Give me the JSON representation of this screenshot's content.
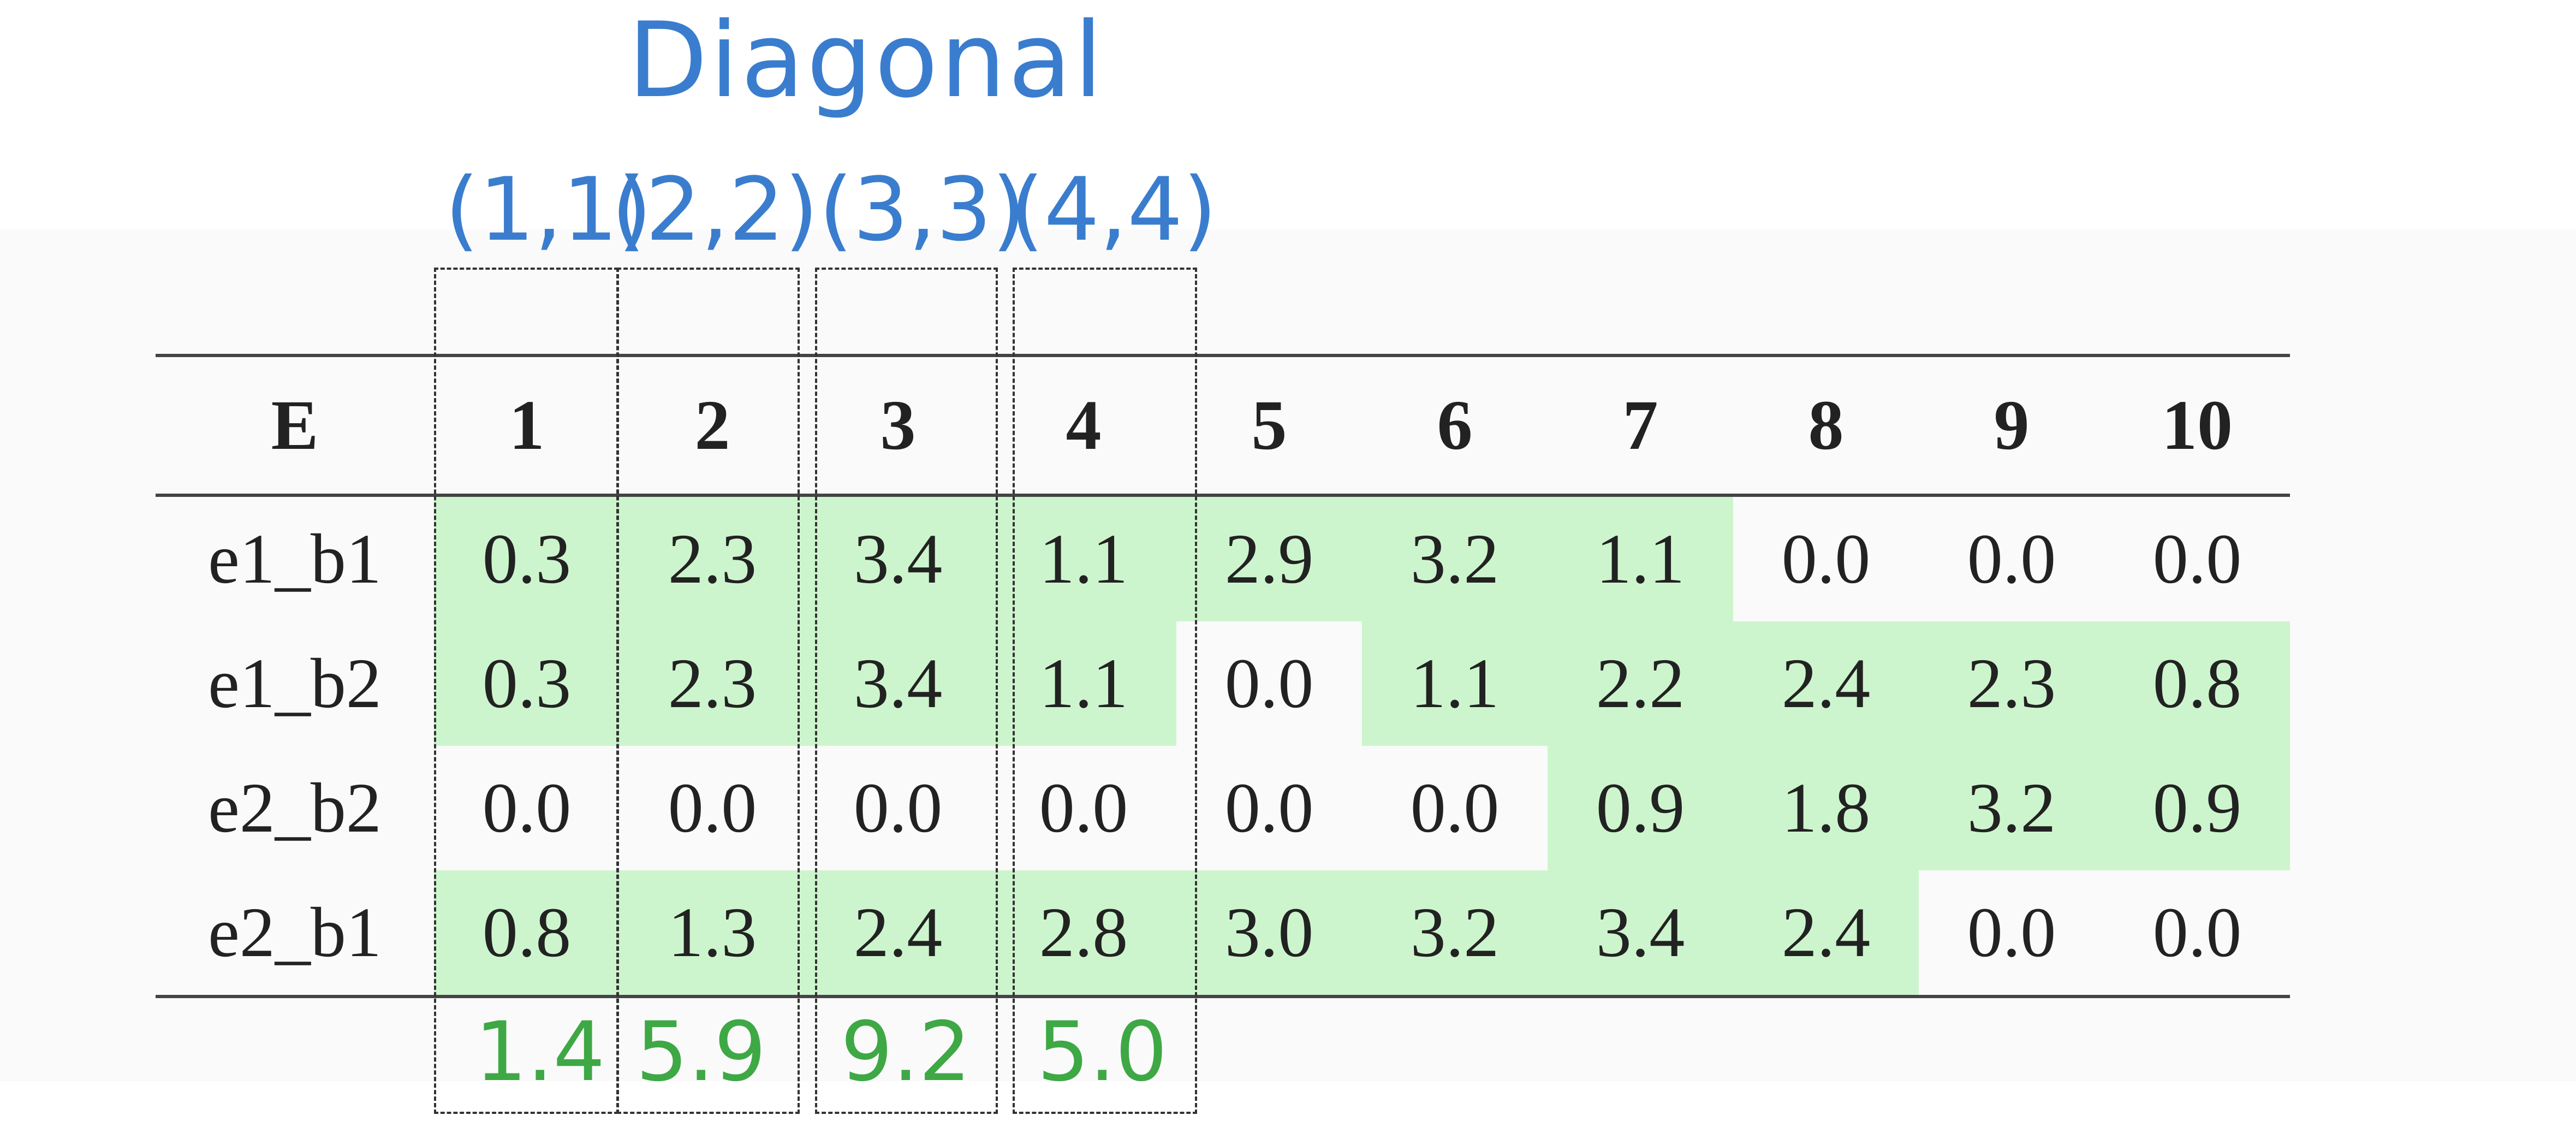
{
  "annotation": {
    "title": "Diagonal",
    "coordinates": [
      "(1,1)",
      "(2,2)",
      "(3,3)",
      "(4,4)"
    ],
    "diagonal_sums": [
      "1.4",
      "5.9",
      "9.2",
      "5.0"
    ],
    "colors": {
      "annotation_blue": "#3a7dce",
      "sum_green": "#3ea845",
      "highlight": "#cdf5cd"
    }
  },
  "table": {
    "header": [
      "E",
      "1",
      "2",
      "3",
      "4",
      "5",
      "6",
      "7",
      "8",
      "9",
      "10"
    ],
    "rows": [
      {
        "label": "e1_b1",
        "cells": [
          "0.3",
          "2.3",
          "3.4",
          "1.1",
          "2.9",
          "3.2",
          "1.1",
          "0.0",
          "0.0",
          "0.0"
        ],
        "highlighted": [
          true,
          true,
          true,
          true,
          true,
          true,
          true,
          false,
          false,
          false
        ]
      },
      {
        "label": "e1_b2",
        "cells": [
          "0.3",
          "2.3",
          "3.4",
          "1.1",
          "0.0",
          "1.1",
          "2.2",
          "2.4",
          "2.3",
          "0.8"
        ],
        "highlighted": [
          true,
          true,
          true,
          true,
          false,
          true,
          true,
          true,
          true,
          true
        ]
      },
      {
        "label": "e2_b2",
        "cells": [
          "0.0",
          "0.0",
          "0.0",
          "0.0",
          "0.0",
          "0.0",
          "0.9",
          "1.8",
          "3.2",
          "0.9"
        ],
        "highlighted": [
          false,
          false,
          false,
          false,
          false,
          false,
          true,
          true,
          true,
          true
        ]
      },
      {
        "label": "e2_b1",
        "cells": [
          "0.8",
          "1.3",
          "2.4",
          "2.8",
          "3.0",
          "3.2",
          "3.4",
          "2.4",
          "0.0",
          "0.0"
        ],
        "highlighted": [
          true,
          true,
          true,
          true,
          true,
          true,
          true,
          true,
          false,
          false
        ]
      }
    ]
  }
}
